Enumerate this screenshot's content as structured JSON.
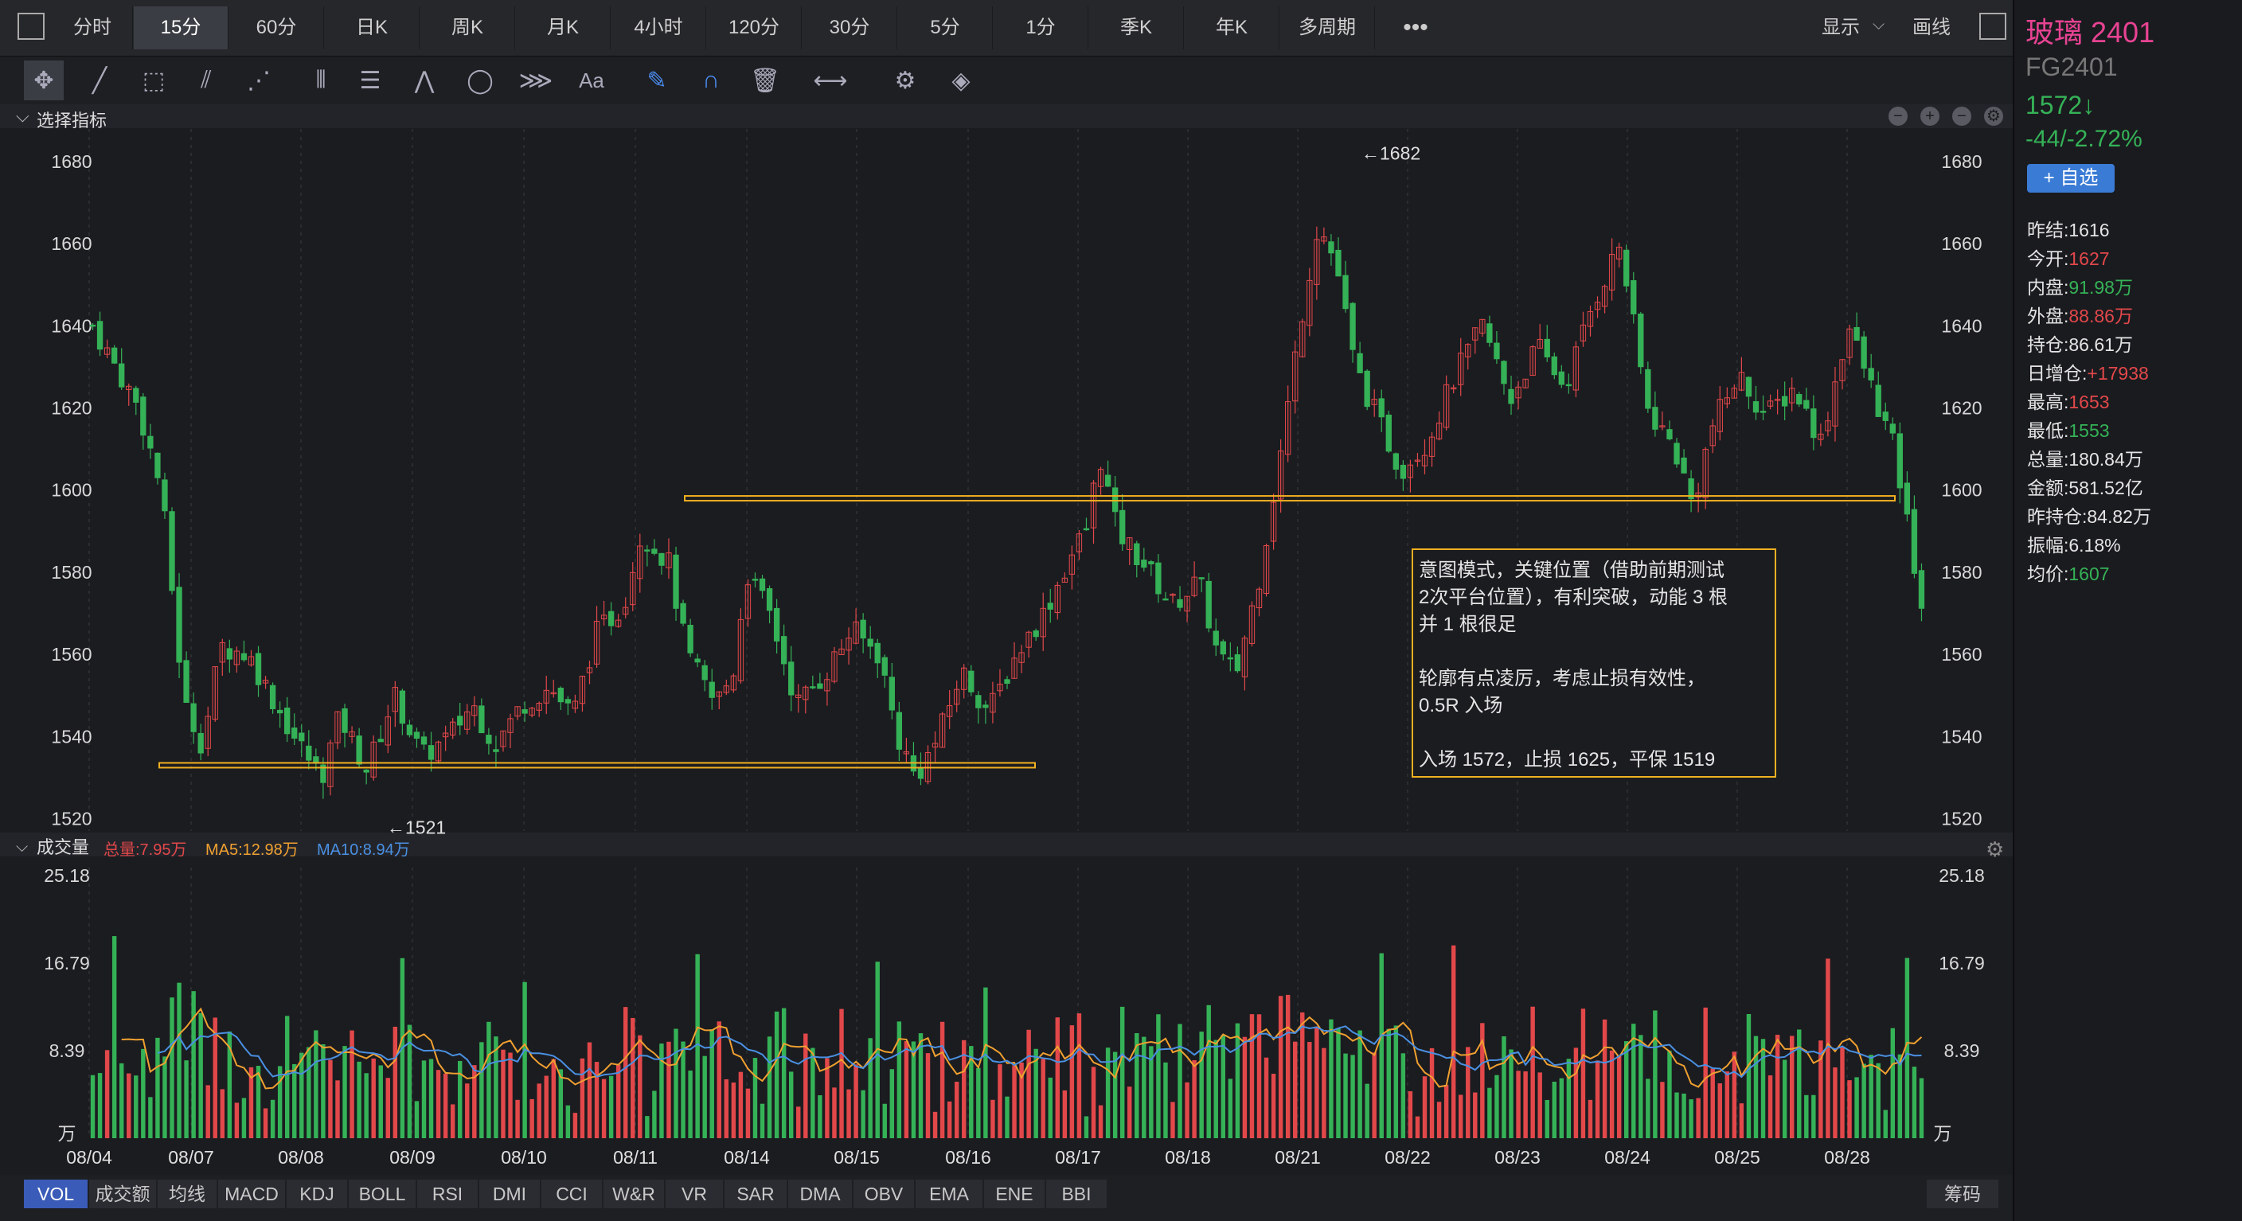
{
  "toolbar": {
    "tabs": [
      "分时",
      "15分",
      "60分",
      "日K",
      "周K",
      "月K",
      "4小时",
      "120分",
      "30分",
      "5分",
      "1分",
      "季K",
      "年K",
      "多周期"
    ],
    "active_tab": "15分",
    "display_label": "显示",
    "draw_label": "画线",
    "tools_label": "Aa",
    "drawing_tool_icons": [
      "move-cross-icon",
      "line-tool-icon",
      "rect-tool-icon",
      "fan-tool-icon",
      "pattern-tool-icon",
      "bars-tool-icon",
      "fib-tool-icon",
      "wave-tool-icon",
      "cycle-tool-icon",
      "channel-tool-icon",
      "text-tool-icon",
      "pen-tool-icon",
      "magnet-icon",
      "trash-icon",
      "measure-icon",
      "gear-icon",
      "layers-icon"
    ]
  },
  "indicator_header": {
    "label": "选择指标"
  },
  "volume_header": {
    "label": "成交量",
    "total": "总量:7.95万",
    "ma5": "MA5:12.98万",
    "ma10": "MA10:8.94万"
  },
  "symbol": {
    "name": "玻璃 2401",
    "code": "FG2401",
    "price": "1572↓",
    "change": "-44/-2.72%",
    "watch_button": "+ 自选"
  },
  "stats": [
    {
      "label": "昨结:",
      "value": "1616",
      "color": "white"
    },
    {
      "label": "今开:",
      "value": "1627",
      "color": "red"
    },
    {
      "label": "内盘:",
      "value": "91.98万",
      "color": "green"
    },
    {
      "label": "外盘:",
      "value": "88.86万",
      "color": "red"
    },
    {
      "label": "持仓:",
      "value": "86.61万",
      "color": "white"
    },
    {
      "label": "日增仓:",
      "value": "+17938",
      "color": "red"
    },
    {
      "label": "最高:",
      "value": "1653",
      "color": "red"
    },
    {
      "label": "最低:",
      "value": "1553",
      "color": "green"
    },
    {
      "label": "总量:",
      "value": "180.84万",
      "color": "white"
    },
    {
      "label": "金额:",
      "value": "581.52亿",
      "color": "white"
    },
    {
      "label": "昨持仓:",
      "value": "84.82万",
      "color": "white"
    },
    {
      "label": "振幅:",
      "value": "6.18%",
      "color": "white"
    },
    {
      "label": "均价:",
      "value": "1607",
      "color": "green"
    }
  ],
  "indicators": [
    "VOL",
    "成交额",
    "均线",
    "MACD",
    "KDJ",
    "BOLL",
    "RSI",
    "DMI",
    "CCI",
    "W&R",
    "VR",
    "SAR",
    "DMA",
    "OBV",
    "EMA",
    "ENE",
    "BBI"
  ],
  "active_indicator": "VOL",
  "chips_button": "筹码",
  "annotation": {
    "lines": [
      "意图模式，关键位置（借助前期测试",
      "2次平台位置），有利突破，动能 3 根",
      "并 1 根很足",
      "",
      "轮廓有点凌厉，考虑止损有效性，",
      "0.5R 入场",
      "",
      "入场 1572，止损 1625，平保 1519"
    ]
  },
  "chart_data": [
    {
      "type": "candlestick",
      "x_dates": [
        "08/04",
        "08/07",
        "08/08",
        "08/09",
        "08/10",
        "08/11",
        "08/14",
        "08/15",
        "08/16",
        "08/17",
        "08/18",
        "08/21",
        "08/22",
        "08/23",
        "08/24",
        "08/25",
        "08/28"
      ],
      "y_ticks": [
        1520,
        1540,
        1560,
        1580,
        1600,
        1620,
        1640,
        1660,
        1680
      ],
      "ylim": [
        1517,
        1686
      ],
      "high_label": "←1682",
      "low_label": "←1521",
      "key_levels": [
        1533,
        1598
      ],
      "price_path": [
        [
          0,
          1640
        ],
        [
          1,
          1620
        ],
        [
          1.5,
          1600
        ],
        [
          2,
          1548
        ],
        [
          2.4,
          1538
        ],
        [
          2.8,
          1562
        ],
        [
          3.4,
          1560
        ],
        [
          3.8,
          1552
        ],
        [
          4.4,
          1540
        ],
        [
          5.0,
          1530
        ],
        [
          5.4,
          1545
        ],
        [
          6.0,
          1532
        ],
        [
          6.6,
          1550
        ],
        [
          7.2,
          1535
        ],
        [
          7.8,
          1540
        ],
        [
          8.3,
          1548
        ],
        [
          8.8,
          1538
        ],
        [
          9.4,
          1548
        ],
        [
          10,
          1552
        ],
        [
          10.5,
          1545
        ],
        [
          11.0,
          1565
        ],
        [
          11.6,
          1572
        ],
        [
          12.0,
          1590
        ],
        [
          12.6,
          1582
        ],
        [
          13.0,
          1560
        ],
        [
          13.6,
          1548
        ],
        [
          14.0,
          1555
        ],
        [
          14.3,
          1580
        ],
        [
          14.8,
          1570
        ],
        [
          15.4,
          1548
        ],
        [
          16.0,
          1555
        ],
        [
          16.6,
          1566
        ],
        [
          17.2,
          1560
        ],
        [
          17.6,
          1540
        ],
        [
          18.0,
          1530
        ],
        [
          18.5,
          1540
        ],
        [
          19.0,
          1556
        ],
        [
          19.6,
          1546
        ],
        [
          20.2,
          1560
        ],
        [
          20.8,
          1570
        ],
        [
          21.4,
          1584
        ],
        [
          21.8,
          1592
        ],
        [
          22.0,
          1610
        ],
        [
          22.4,
          1590
        ],
        [
          23.0,
          1582
        ],
        [
          23.6,
          1572
        ],
        [
          24.2,
          1578
        ],
        [
          24.6,
          1560
        ],
        [
          25.0,
          1555
        ],
        [
          25.5,
          1578
        ],
        [
          26.0,
          1610
        ],
        [
          26.4,
          1640
        ],
        [
          26.8,
          1665
        ],
        [
          27.2,
          1655
        ],
        [
          27.6,
          1630
        ],
        [
          28.0,
          1620
        ],
        [
          28.6,
          1605
        ],
        [
          29.2,
          1612
        ],
        [
          29.8,
          1628
        ],
        [
          30.4,
          1640
        ],
        [
          31.0,
          1622
        ],
        [
          31.6,
          1635
        ],
        [
          32.2,
          1625
        ],
        [
          32.8,
          1645
        ],
        [
          33.4,
          1660
        ],
        [
          34.0,
          1620
        ],
        [
          34.6,
          1610
        ],
        [
          35.0,
          1596
        ],
        [
          35.4,
          1615
        ],
        [
          36.0,
          1628
        ],
        [
          36.6,
          1618
        ],
        [
          37.2,
          1625
        ],
        [
          37.8,
          1612
        ],
        [
          38.4,
          1640
        ],
        [
          38.8,
          1628
        ],
        [
          39.4,
          1610
        ],
        [
          40.0,
          1572
        ]
      ],
      "price_path_x_max": 40,
      "candle_count": 255
    },
    {
      "type": "bar",
      "title": "成交量",
      "y_ticks": [
        8.39,
        16.79,
        25.18
      ],
      "y_unit": "万",
      "ylim": [
        0,
        25.18
      ],
      "series": [
        {
          "name": "VOL",
          "color": "mixed"
        },
        {
          "name": "MA5",
          "color": "#f0a030"
        },
        {
          "name": "MA10",
          "color": "#4a90e2"
        }
      ]
    }
  ],
  "colors": {
    "up": "#e2484a",
    "down": "#35b257",
    "level_line": "#f0b020",
    "ma5": "#f0a030",
    "ma10": "#4a90e2",
    "accent": "#3a7bd5",
    "symbol": "#e84393"
  }
}
